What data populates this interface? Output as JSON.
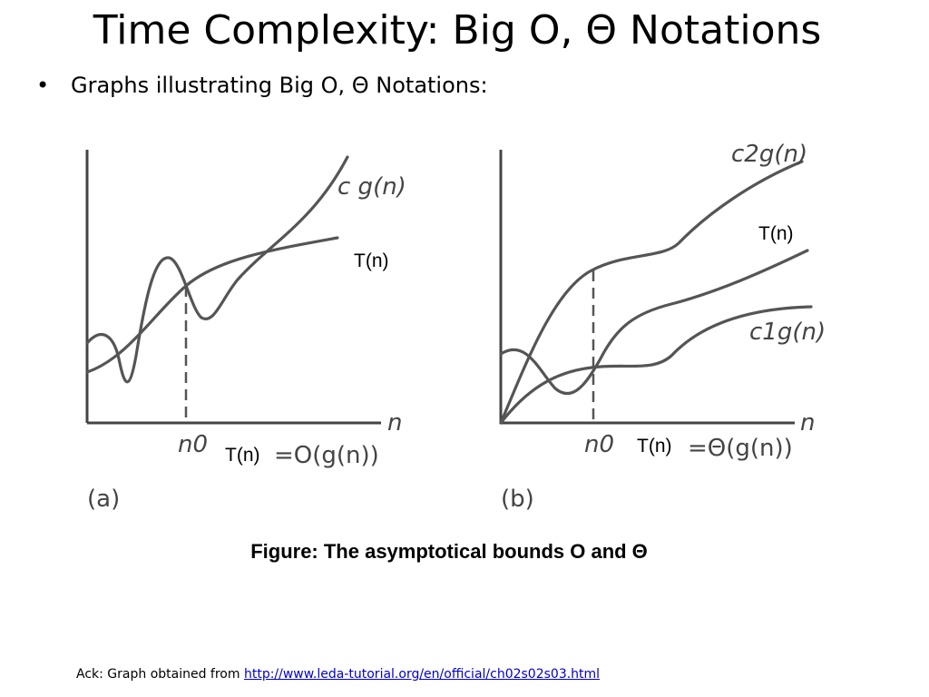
{
  "slide": {
    "title": "Time Complexity: Big Ο, Θ Notations",
    "bullet": "Graphs illustrating Big Ο, Θ Notations:",
    "caption": "Figure:  The asymptotical bounds O and Θ",
    "ack_prefix": "Ack: Graph obtained from ",
    "ack_link": "http://www.leda-tutorial.org/en/official/ch02s02s03.html"
  },
  "graph_a": {
    "upper_label": "c g(n)",
    "tn_label": "T(n)",
    "axis_x_label": "n",
    "threshold_label": "n0",
    "bottom_tn": "T(n)",
    "bound_text": "=O(g(n))",
    "panel_label": "(a)"
  },
  "graph_b": {
    "upper_label": "c2g(n)",
    "tn_label": "T(n)",
    "lower_label": "c1g(n)",
    "axis_x_label": "n",
    "threshold_label": "n0",
    "bottom_tn": "T(n)",
    "bound_text": "=Θ(g(n))",
    "panel_label": "(b)"
  },
  "colors": {
    "line": "#555555",
    "link": "#0000cc"
  }
}
